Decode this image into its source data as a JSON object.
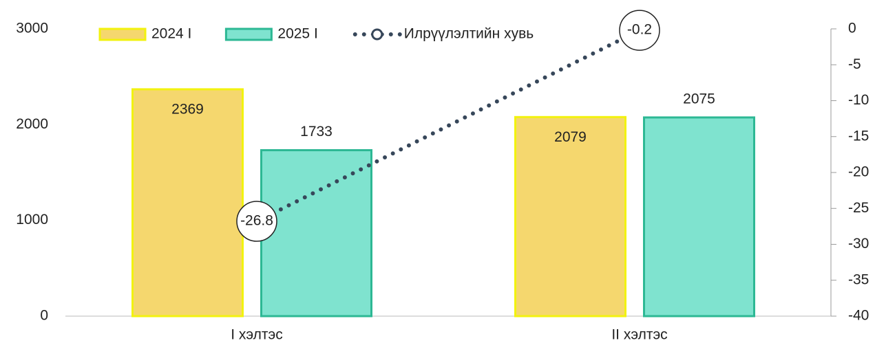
{
  "chart_data": {
    "type": "bar",
    "categories": [
      "I хэлтэс",
      "II хэлтэс"
    ],
    "series": [
      {
        "name": "2024 I",
        "type": "bar",
        "color": "#f5d76e",
        "edge": "#f2f20f",
        "values": [
          2369,
          2079
        ]
      },
      {
        "name": "2025 I",
        "type": "bar",
        "color": "#7fe3cf",
        "edge": "#2db894",
        "values": [
          1733,
          2075
        ]
      },
      {
        "name": "Илрүүлэлтийн хувь",
        "type": "line",
        "axis": "y2",
        "color": "#37475a",
        "values": [
          -26.8,
          -0.2
        ]
      }
    ],
    "ylim": [
      0,
      3000
    ],
    "yticks": [
      0,
      1000,
      2000,
      3000
    ],
    "y2lim": [
      -40,
      0
    ],
    "y2ticks": [
      0,
      -5,
      -10,
      -15,
      -20,
      -25,
      -30,
      -35,
      -40
    ],
    "legend": "top"
  }
}
